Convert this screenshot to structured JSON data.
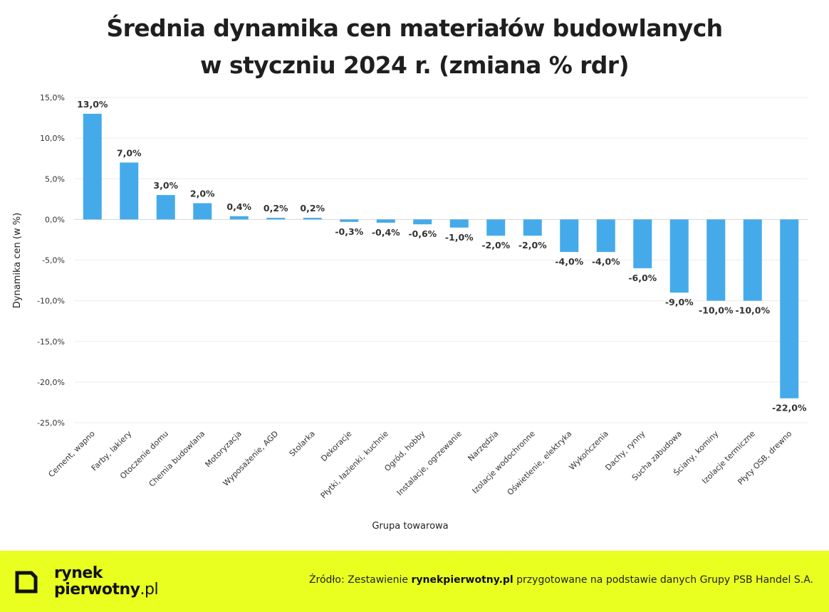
{
  "chart_data": {
    "type": "bar",
    "title": [
      "Średnia dynamika cen materiałów budowlanych",
      "w styczniu 2024 r. (zmiana % rdr)"
    ],
    "xlabel": "Grupa towarowa",
    "ylabel": "Dynamika cen (w %)",
    "ylim": [
      -25,
      15
    ],
    "yticks": [
      15,
      10,
      5,
      0,
      -5,
      -10,
      -15,
      -20,
      -25
    ],
    "ytick_labels": [
      "15,0%",
      "10,0%",
      "5,0%",
      "0,0%",
      "-5,0%",
      "-10,0%",
      "-15,0%",
      "-20,0%",
      "-25,0%"
    ],
    "grid": true,
    "bar_color": "#45aaea",
    "categories": [
      "Cement, wapno",
      "Farby, lakiery",
      "Otoczenie domu",
      "Chemia budowlana",
      "Motoryzacja",
      "Wyposażenie, AGD",
      "Stolarka",
      "Dekoracje",
      "Płytki, łazienki, kuchnie",
      "Ogród, hobby",
      "Instalacje, ogrzewanie",
      "Narzędzia",
      "Izolacje wodochronne",
      "Oświetlenie, elektryka",
      "Wykończenia",
      "Dachy, rynny",
      "Sucha zabudowa",
      "Ściany, kominy",
      "Izolacje termiczne",
      "Płyty OSB, drewno"
    ],
    "values": [
      13.0,
      7.0,
      3.0,
      2.0,
      0.4,
      0.2,
      0.2,
      -0.3,
      -0.4,
      -0.6,
      -1.0,
      -2.0,
      -2.0,
      -4.0,
      -4.0,
      -6.0,
      -9.0,
      -10.0,
      -10.0,
      -22.0
    ],
    "value_labels": [
      "13,0%",
      "7,0%",
      "3,0%",
      "2,0%",
      "0,4%",
      "0,2%",
      "0,2%",
      "-0,3%",
      "-0,4%",
      "-0,6%",
      "-1,0%",
      "-2,0%",
      "-2,0%",
      "-4,0%",
      "-4,0%",
      "-6,0%",
      "-9,0%",
      "-10,0%",
      "-10,0%",
      "-22,0%"
    ]
  },
  "footer": {
    "logo_line1": "rynek",
    "logo_line2_bold": "pierwotny",
    "logo_line2_suffix": ".pl",
    "source_prefix": "Źródło: Zestawienie ",
    "source_brand": "rynekpierwotny.pl",
    "source_suffix": " przygotowane na podstawie danych Grupy PSB Handel S.A."
  },
  "colors": {
    "footer_bg": "#e9ff1f",
    "bar": "#45aaea",
    "text": "#222222"
  }
}
